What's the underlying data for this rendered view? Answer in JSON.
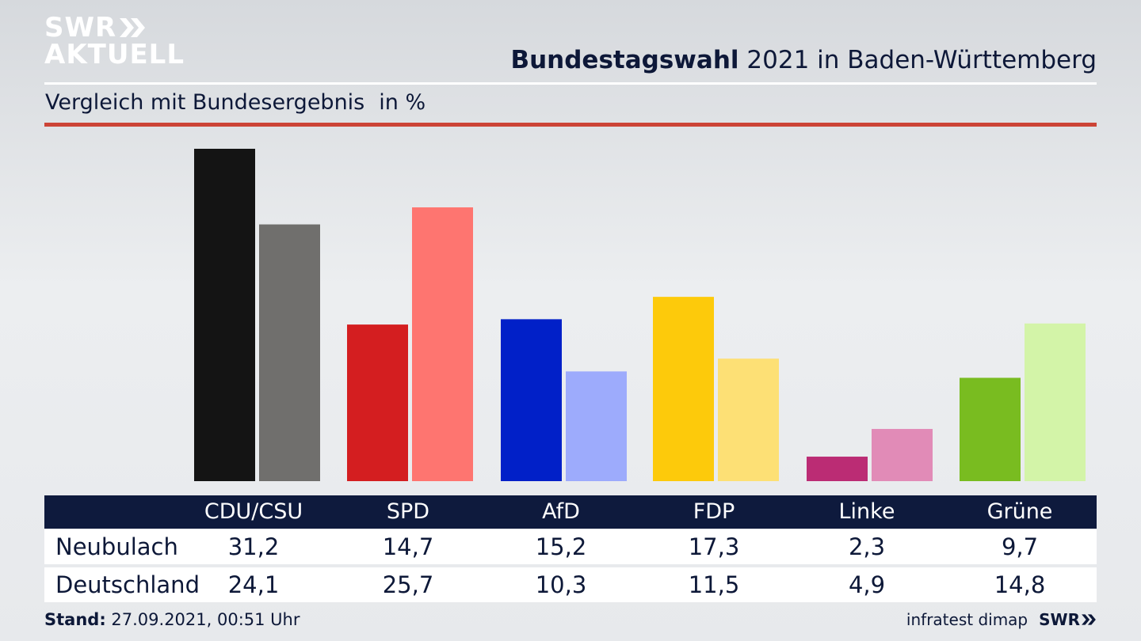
{
  "header": {
    "logo_line1": "SWR",
    "logo_line2": "AKTUELL",
    "title_bold": "Bundestagswahl",
    "title_rest": " 2021 in Baden-Württemberg",
    "subtitle": "Vergleich mit Bundesergebnis",
    "unit": "in %"
  },
  "colors": {
    "accent_rule": "#cc4436",
    "table_header_bg": "#0e1a3d"
  },
  "chart_data": {
    "type": "bar",
    "categories": [
      "CDU/CSU",
      "SPD",
      "AfD",
      "FDP",
      "Linke",
      "Grüne"
    ],
    "series": [
      {
        "name": "Neubulach",
        "values": [
          31.2,
          14.7,
          15.2,
          17.3,
          2.3,
          9.7
        ],
        "colors": [
          "#141414",
          "#d41e20",
          "#0120c8",
          "#fdca0b",
          "#bb2c74",
          "#79bc20"
        ]
      },
      {
        "name": "Deutschland",
        "values": [
          24.1,
          25.7,
          10.3,
          11.5,
          4.9,
          14.8
        ],
        "colors": [
          "#706f6d",
          "#fe7570",
          "#9dabfc",
          "#fde075",
          "#e18bb7",
          "#d3f4a8"
        ]
      }
    ],
    "grid": false,
    "legend": "table-below"
  },
  "table": {
    "headers": [
      "CDU/CSU",
      "SPD",
      "AfD",
      "FDP",
      "Linke",
      "Grüne"
    ],
    "rows": [
      {
        "label": "Neubulach",
        "values": [
          "31,2",
          "14,7",
          "15,2",
          "17,3",
          "2,3",
          "9,7"
        ]
      },
      {
        "label": "Deutschland",
        "values": [
          "24,1",
          "25,7",
          "10,3",
          "11,5",
          "4,9",
          "14,8"
        ]
      }
    ]
  },
  "footer": {
    "stand_label": "Stand:",
    "stand_value": " 27.09.2021, 00:51 Uhr",
    "source": "infratest dimap",
    "brand": "SWR"
  }
}
